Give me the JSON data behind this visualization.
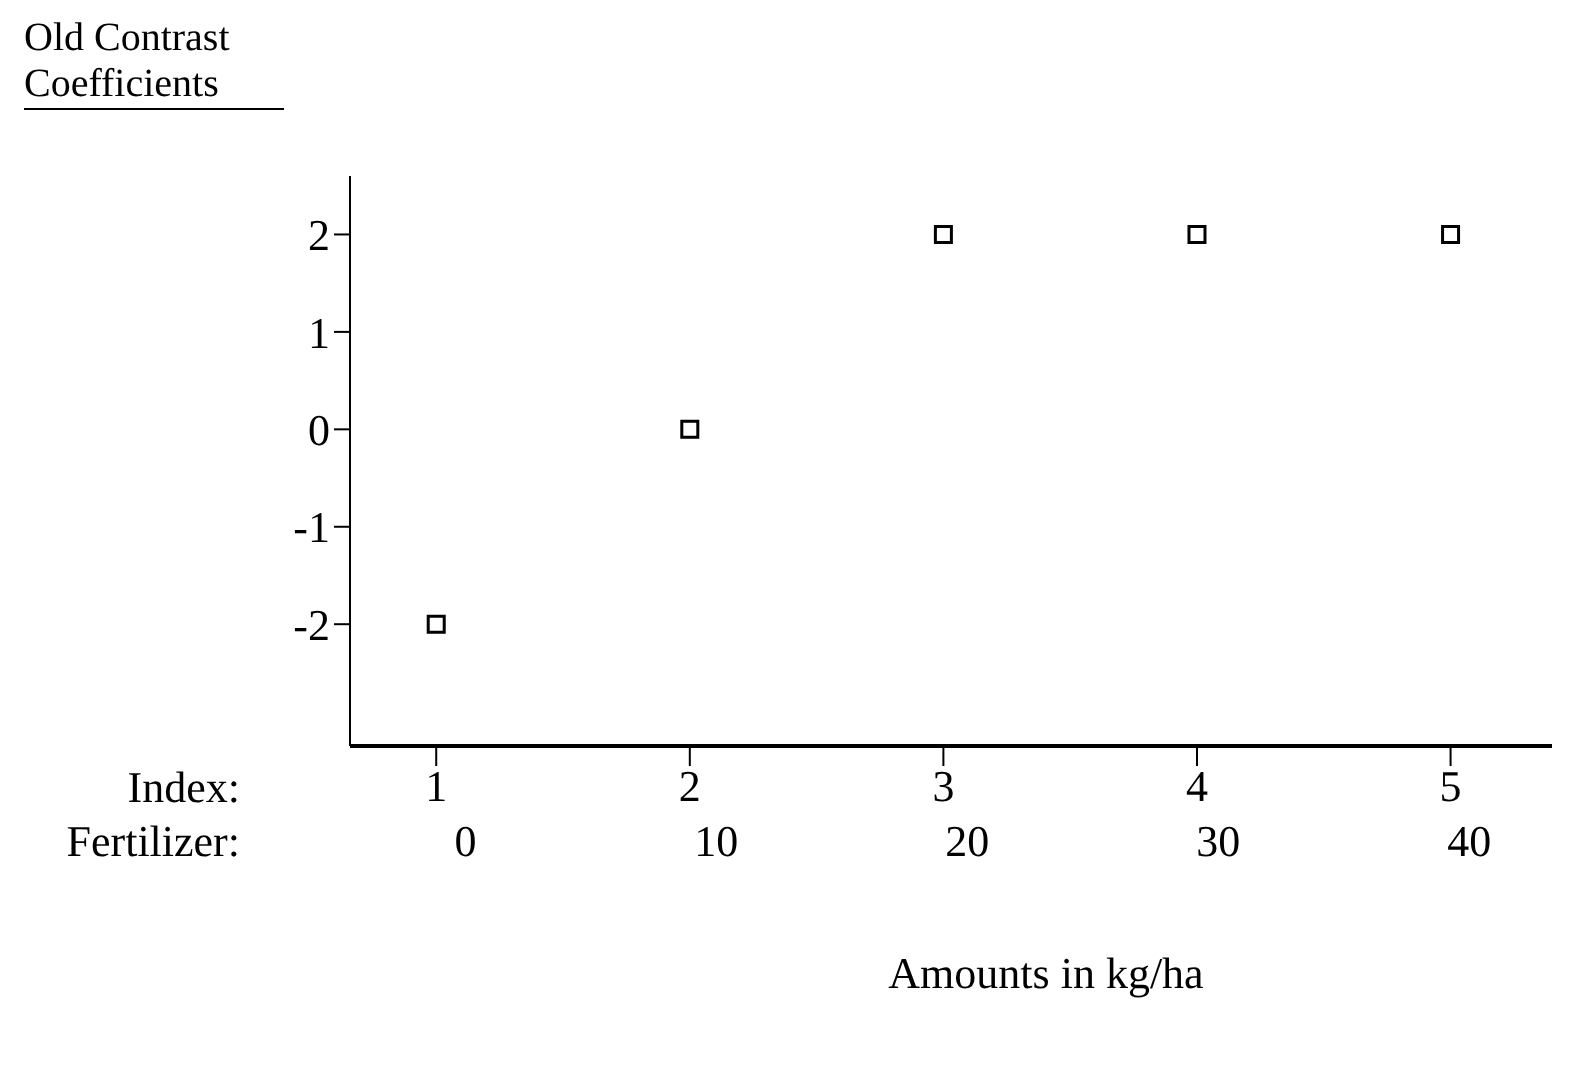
{
  "chart_data": {
    "type": "scatter",
    "ylabel": "Old Contrast Coefficients",
    "xlabel": "Index:",
    "x2label": "Fertilizer:",
    "annotations": [
      "Amounts in kg/ha"
    ],
    "x": [
      1,
      2,
      3,
      4,
      5
    ],
    "series": [
      {
        "color": "#000000",
        "values": [
          -2,
          0,
          2,
          2,
          2
        ]
      }
    ],
    "marker": "square",
    "grid": false,
    "legend": false,
    "xlim": [
      0.66,
      5.4
    ],
    "xticks": [
      1,
      2,
      3,
      4,
      5
    ],
    "x2lim": [
      -4.6,
      43.3
    ],
    "x2ticks": [
      0,
      10,
      20,
      30,
      40
    ],
    "ylim": [
      -3.25,
      2.6
    ],
    "yticks": [
      -2,
      -1,
      0,
      1,
      2
    ]
  }
}
